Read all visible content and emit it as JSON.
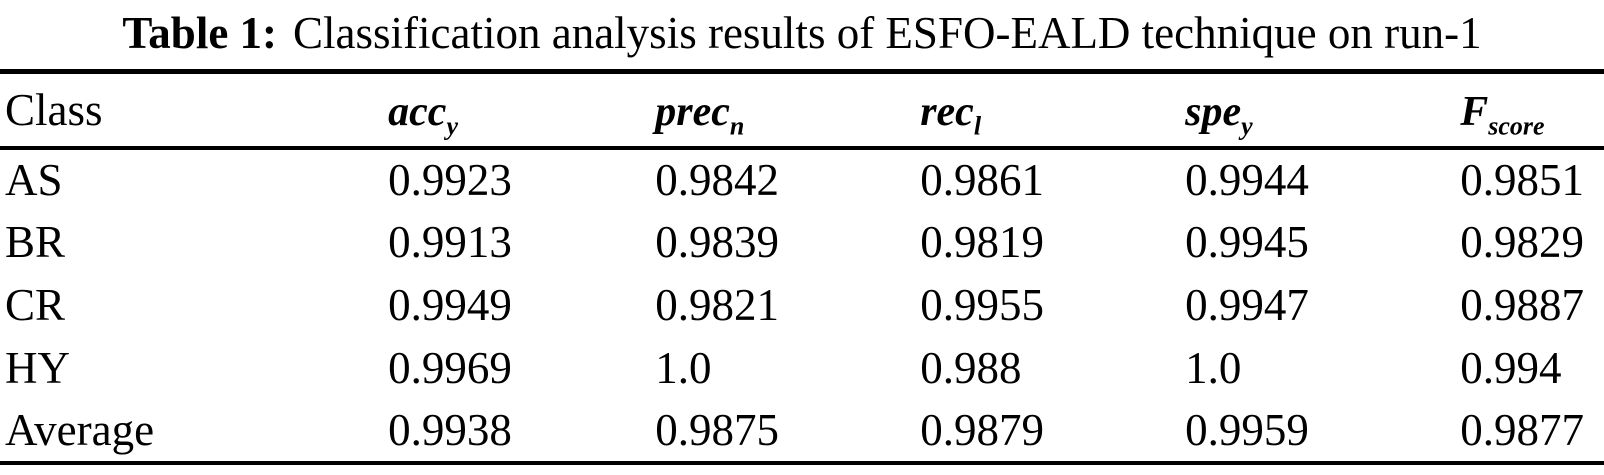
{
  "caption": {
    "label": "Table 1:",
    "text": "Classification analysis results of ESFO-EALD technique on run-1"
  },
  "table": {
    "columns": [
      {
        "base": "Class",
        "sub": ""
      },
      {
        "base": "acc",
        "sub": "y"
      },
      {
        "base": "prec",
        "sub": "n"
      },
      {
        "base": "rec",
        "sub": "l"
      },
      {
        "base": "spe",
        "sub": "y"
      },
      {
        "base": "F",
        "sub": "score"
      }
    ],
    "rows": [
      {
        "cells": [
          "AS",
          "0.9923",
          "0.9842",
          "0.9861",
          "0.9944",
          "0.9851"
        ]
      },
      {
        "cells": [
          "BR",
          "0.9913",
          "0.9839",
          "0.9819",
          "0.9945",
          "0.9829"
        ]
      },
      {
        "cells": [
          "CR",
          "0.9949",
          "0.9821",
          "0.9955",
          "0.9947",
          "0.9887"
        ]
      },
      {
        "cells": [
          "HY",
          "0.9969",
          "1.0",
          "0.988",
          "1.0",
          "0.994"
        ]
      },
      {
        "cells": [
          "Average",
          "0.9938",
          "0.9875",
          "0.9879",
          "0.9959",
          "0.9877"
        ]
      }
    ]
  },
  "colors": {
    "text": "#000000",
    "background": "#ffffff",
    "rule": "#000000"
  },
  "chart_data": {
    "type": "table",
    "title": "Table 1: Classification analysis results of ESFO-EALD technique on run-1",
    "columns": [
      "Class",
      "acc_y",
      "prec_n",
      "rec_l",
      "spe_y",
      "F_score"
    ],
    "rows": [
      [
        "AS",
        0.9923,
        0.9842,
        0.9861,
        0.9944,
        0.9851
      ],
      [
        "BR",
        0.9913,
        0.9839,
        0.9819,
        0.9945,
        0.9829
      ],
      [
        "CR",
        0.9949,
        0.9821,
        0.9955,
        0.9947,
        0.9887
      ],
      [
        "HY",
        0.9969,
        1.0,
        0.988,
        1.0,
        0.994
      ],
      [
        "Average",
        0.9938,
        0.9875,
        0.9879,
        0.9959,
        0.9877
      ]
    ]
  }
}
